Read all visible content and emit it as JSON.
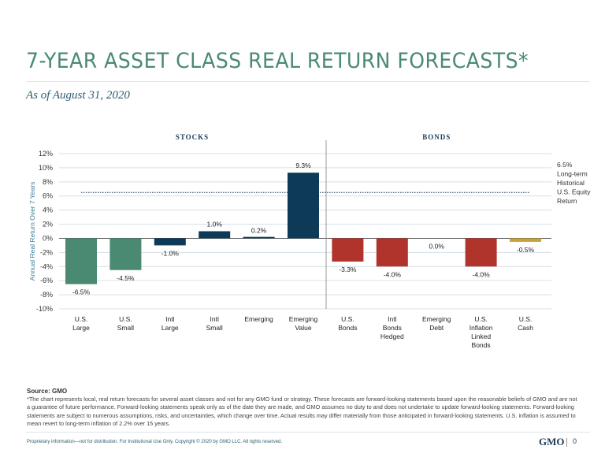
{
  "title": "7-YEAR ASSET CLASS REAL RETURN FORECASTS*",
  "subtitle": "As of August 31, 2020",
  "chart_data": {
    "type": "bar",
    "ylabel": "Annual Real Return Over 7 Years",
    "ylim": [
      -10,
      12
    ],
    "yticks": [
      "12%",
      "10%",
      "8%",
      "6%",
      "4%",
      "2%",
      "0%",
      "-2%",
      "-4%",
      "-6%",
      "-8%",
      "-10%"
    ],
    "grid": true,
    "groups": [
      {
        "label": "STOCKS",
        "categories": [
          0,
          1,
          2,
          3,
          4,
          5
        ]
      },
      {
        "label": "BONDS",
        "categories": [
          6,
          7,
          8,
          9,
          10
        ]
      }
    ],
    "categories": [
      [
        "U.S.",
        "Large"
      ],
      [
        "U.S.",
        "Small"
      ],
      [
        "Intl",
        "Large"
      ],
      [
        "Intl",
        "Small"
      ],
      [
        "Emerging"
      ],
      [
        "Emerging",
        "Value"
      ],
      [
        "U.S.",
        "Bonds"
      ],
      [
        "Intl",
        "Bonds",
        "Hedged"
      ],
      [
        "Emerging",
        "Debt"
      ],
      [
        "U.S.",
        "Inflation",
        "Linked",
        "Bonds"
      ],
      [
        "U.S.",
        "Cash"
      ]
    ],
    "values": [
      -6.5,
      -4.5,
      -1.0,
      1.0,
      0.2,
      9.3,
      -3.3,
      -4.0,
      0.0,
      -4.0,
      -0.5
    ],
    "data_labels": [
      "-6.5%",
      "-4.5%",
      "-1.0%",
      "1.0%",
      "0.2%",
      "9.3%",
      "-3.3%",
      "-4.0%",
      "0.0%",
      "-4.0%",
      "-0.5%"
    ],
    "colors": [
      "#4a8a73",
      "#4a8a73",
      "#0d3a56",
      "#0d3a56",
      "#0d3a56",
      "#0d3a56",
      "#b0332c",
      "#b0332c",
      "#b0332c",
      "#b0332c",
      "#c9a23a"
    ],
    "reference_line": {
      "value": 6.5,
      "style": "dotted",
      "label": [
        "6.5%",
        "Long-term",
        "Historical",
        "U.S. Equity",
        "Return"
      ]
    }
  },
  "source": "Source: GMO",
  "note": "*The chart represents local, real return forecasts for several asset classes and not for any GMO fund or strategy. These forecasts are forward-looking statements based upon the reasonable beliefs of GMO and are not a guarantee of future performance. Forward-looking statements speak only as of the date they are made, and GMO assumes no duty to and does not undertake to update forward-looking statements. Forward-looking statements are subject to numerous assumptions, risks, and uncertainties, which change over time. Actual results may differ materially from those anticipated in forward-looking statements. U.S. inflation is assumed to mean revert to long-term inflation of 2.2% over 15 years.",
  "footer": "Proprietary information—not for distribution. For Institutional Use Only. Copyright © 2020 by GMO LLC. All rights reserved.",
  "logo": "GMO",
  "page": "0"
}
